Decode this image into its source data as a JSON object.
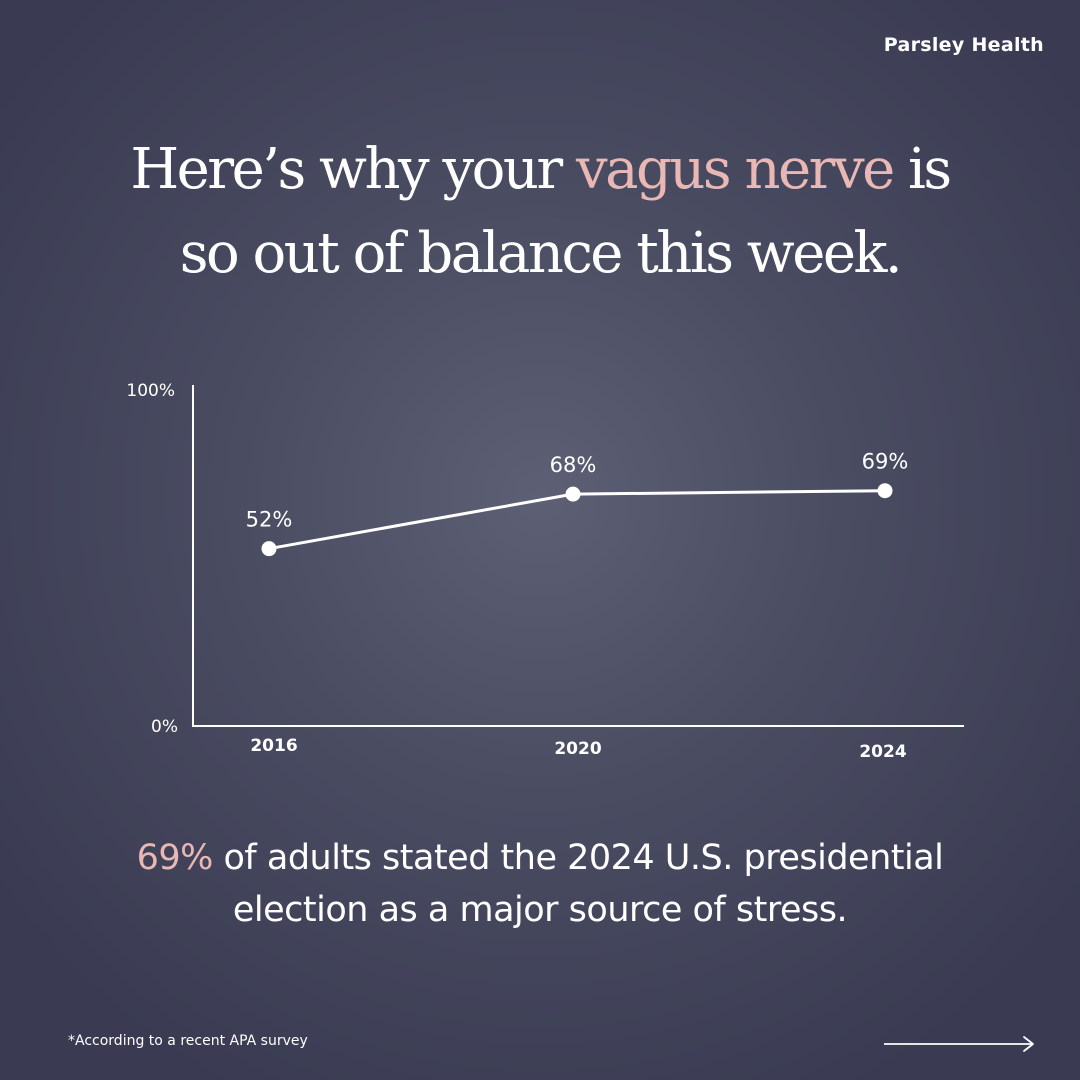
{
  "brand": "Parsley Health",
  "headline": {
    "line1_pre": "Here’s why your ",
    "line1_accent": "vagus nerve",
    "line1_post": " is",
    "line2": "so out of balance this week."
  },
  "caption": {
    "highlight": "69%",
    "line1_rest": " of adults stated the 2024 U.S. presidential",
    "line2": "election as a major source of stress."
  },
  "footnote": "*According to a recent APA survey",
  "icons": {
    "next": "arrow-right-icon"
  },
  "colors": {
    "background": "#3a3b52",
    "accent": "#e9b7b4",
    "foreground": "#ffffff"
  },
  "chart_data": {
    "type": "line",
    "title": "",
    "xlabel": "",
    "ylabel": "",
    "x": [
      "2016",
      "2020",
      "2024"
    ],
    "series": [
      {
        "values": [
          52,
          68,
          69
        ],
        "labels": [
          "52%",
          "68%",
          "69%"
        ]
      }
    ],
    "ylim": [
      0,
      100
    ],
    "y_tick_labels": [
      "0%",
      "100%"
    ],
    "grid": false,
    "legend": "none"
  }
}
